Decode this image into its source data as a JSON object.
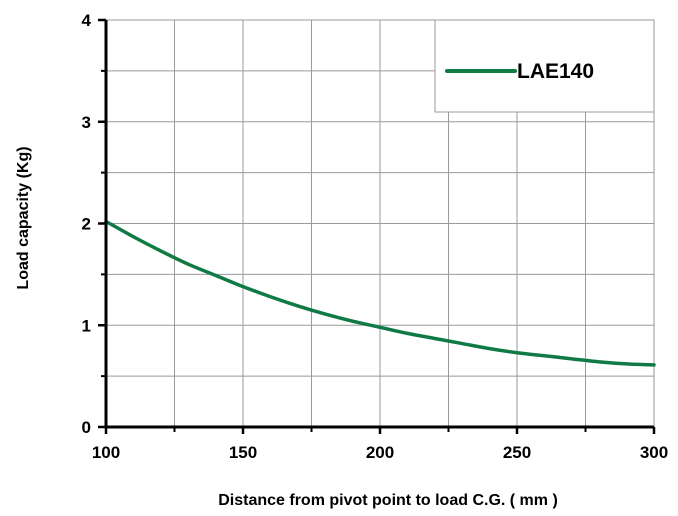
{
  "chart_data": {
    "type": "line",
    "title": "",
    "xlabel": "Distance from pivot point to load C.G. ( mm )",
    "ylabel": "Load  capacity  (Kg)",
    "xlim": [
      100,
      300
    ],
    "ylim": [
      0,
      4
    ],
    "x_ticks": [
      100,
      150,
      200,
      250,
      300
    ],
    "x_tick_labels": [
      "100",
      "150",
      "200",
      "250",
      "300"
    ],
    "y_ticks": [
      0,
      1,
      2,
      3,
      4
    ],
    "y_tick_labels": [
      "0",
      "1",
      "2",
      "3",
      "4"
    ],
    "x_minor_step": 25,
    "y_minor_step": 0.5,
    "grid": true,
    "legend_position": "top-right",
    "series": [
      {
        "name": "LAE140",
        "color": "#0f7a45",
        "x": [
          100,
          110,
          120,
          130,
          140,
          150,
          160,
          170,
          180,
          190,
          200,
          210,
          220,
          230,
          240,
          250,
          260,
          270,
          280,
          290,
          300
        ],
        "y": [
          2.02,
          1.87,
          1.73,
          1.6,
          1.49,
          1.38,
          1.28,
          1.19,
          1.11,
          1.04,
          0.98,
          0.92,
          0.87,
          0.82,
          0.77,
          0.73,
          0.7,
          0.67,
          0.64,
          0.62,
          0.61
        ]
      }
    ]
  }
}
